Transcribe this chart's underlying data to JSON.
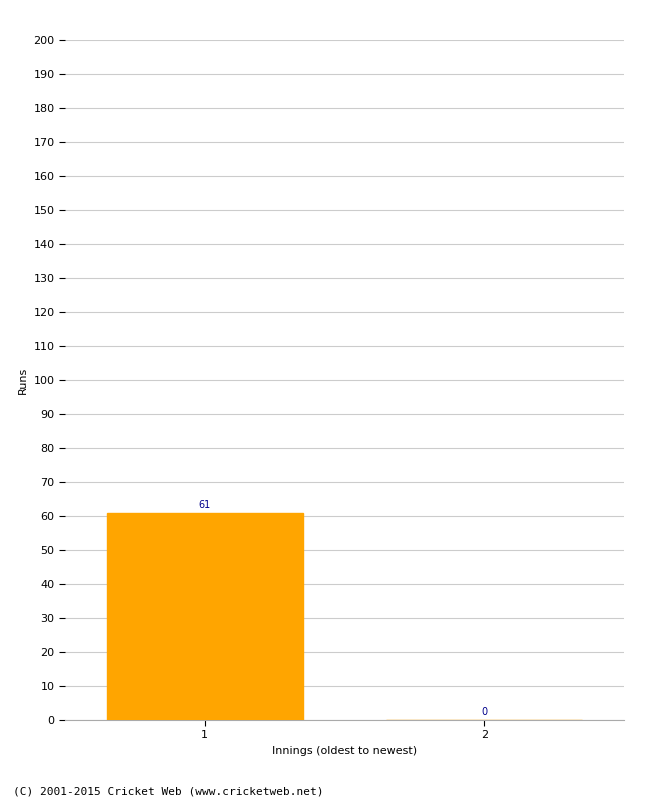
{
  "xlabel": "Innings (oldest to newest)",
  "ylabel": "Runs",
  "categories": [
    "1",
    "2"
  ],
  "values": [
    61,
    0
  ],
  "bar_color": "#FFA500",
  "ylim": [
    0,
    200
  ],
  "yticks": [
    0,
    10,
    20,
    30,
    40,
    50,
    60,
    70,
    80,
    90,
    100,
    110,
    120,
    130,
    140,
    150,
    160,
    170,
    180,
    190,
    200
  ],
  "label_color": "#00008B",
  "label_fontsize": 7,
  "axis_fontsize": 8,
  "tick_fontsize": 8,
  "footer": "(C) 2001-2015 Cricket Web (www.cricketweb.net)",
  "footer_fontsize": 8,
  "background_color": "#ffffff",
  "grid_color": "#cccccc",
  "x_positions": [
    1,
    2
  ],
  "xlim": [
    0.5,
    2.5
  ],
  "bar_width": 0.7
}
